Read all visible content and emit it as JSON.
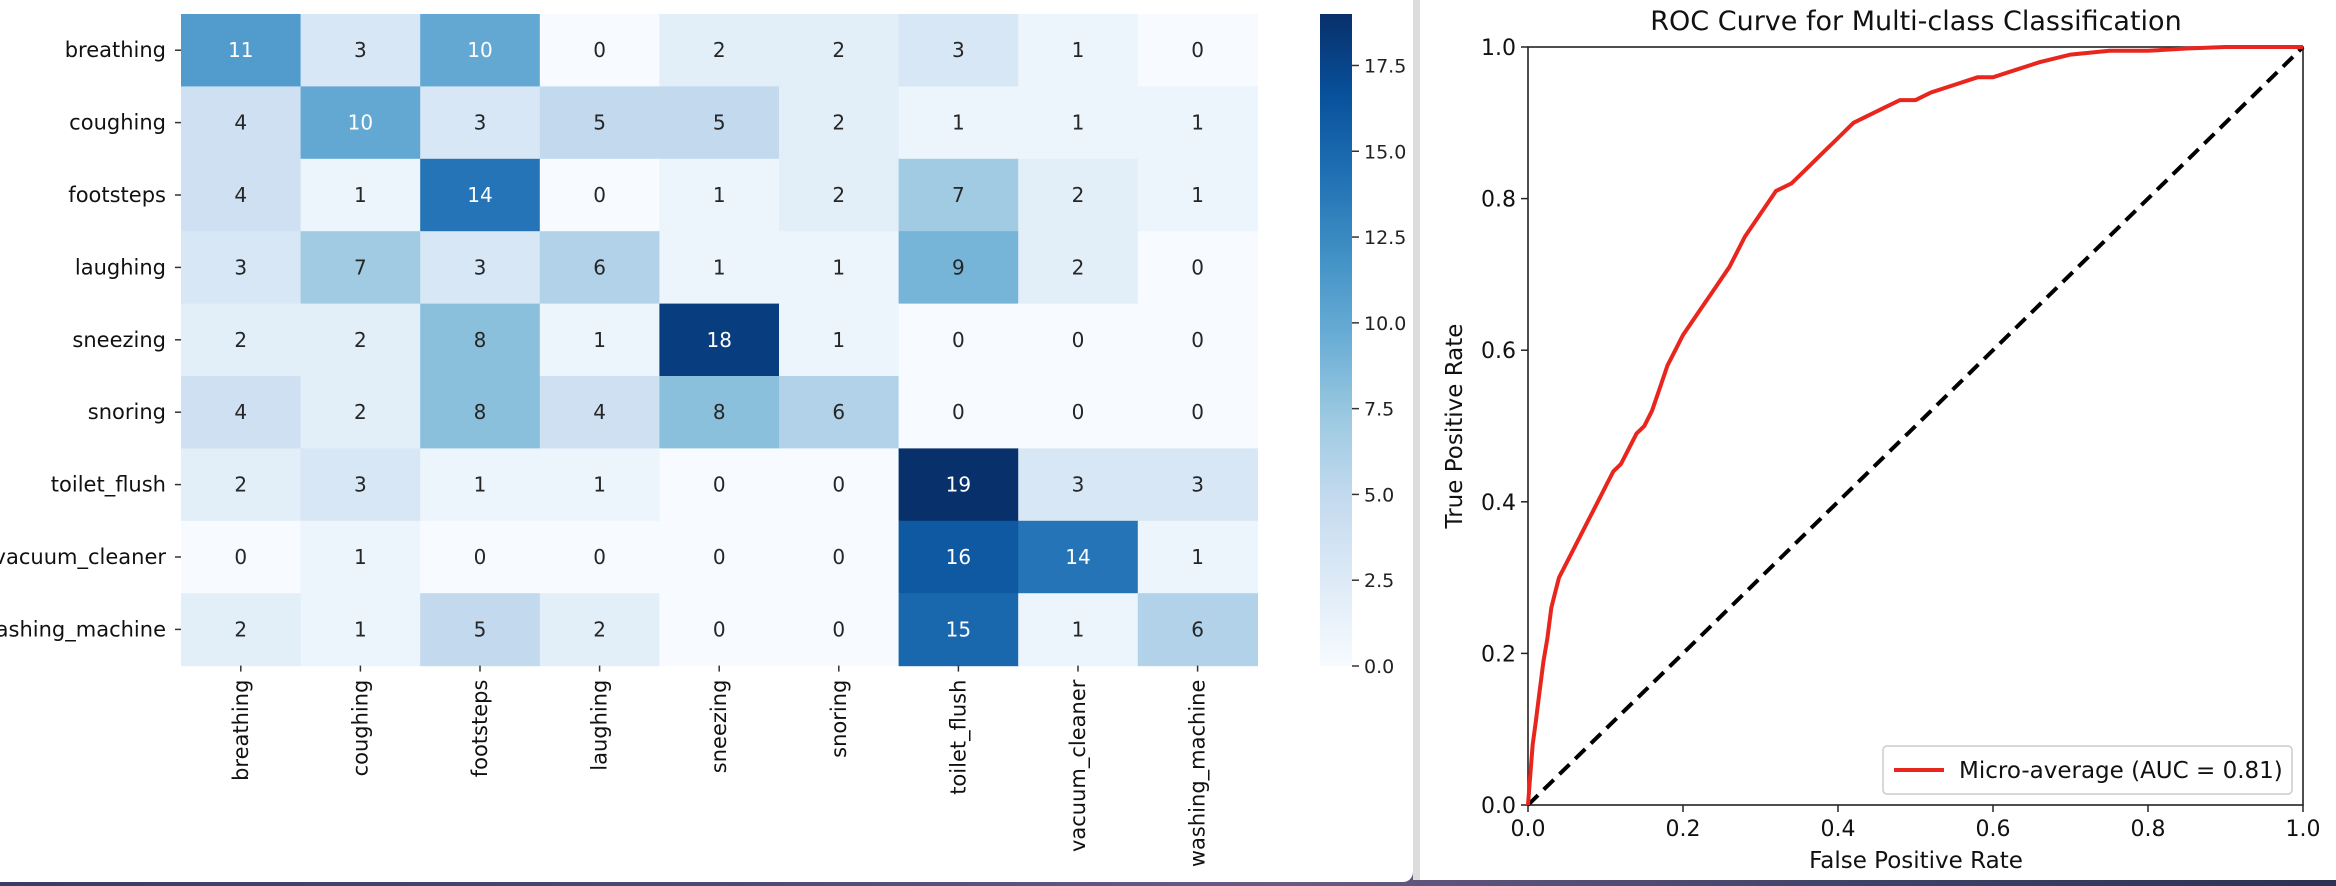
{
  "chart_data": [
    {
      "type": "heatmap",
      "rows": [
        "breathing",
        "coughing",
        "footsteps",
        "laughing",
        "sneezing",
        "snoring",
        "toilet_flush",
        "vacuum_cleaner",
        "washing_machine"
      ],
      "row_labels_visible": [
        "breathing",
        "coughing",
        "footsteps",
        "laughing",
        "sneezing",
        "snoring",
        "toilet_flush",
        "vacuum_cleaner",
        "ashing_machine"
      ],
      "columns": [
        "breathing",
        "coughing",
        "footsteps",
        "laughing",
        "sneezing",
        "snoring",
        "toilet_flush",
        "vacuum_cleaner",
        "washing_machine"
      ],
      "values": [
        [
          11,
          3,
          10,
          0,
          2,
          2,
          3,
          1,
          0
        ],
        [
          4,
          10,
          3,
          5,
          5,
          2,
          1,
          1,
          1
        ],
        [
          4,
          1,
          14,
          0,
          1,
          2,
          7,
          2,
          1
        ],
        [
          3,
          7,
          3,
          6,
          1,
          1,
          9,
          2,
          0
        ],
        [
          2,
          2,
          8,
          1,
          18,
          1,
          0,
          0,
          0
        ],
        [
          4,
          2,
          8,
          4,
          8,
          6,
          0,
          0,
          0
        ],
        [
          2,
          3,
          1,
          1,
          0,
          0,
          19,
          3,
          3
        ],
        [
          0,
          1,
          0,
          0,
          0,
          0,
          16,
          14,
          1
        ],
        [
          2,
          1,
          5,
          2,
          0,
          0,
          15,
          1,
          6
        ]
      ],
      "colormap": "Blues",
      "vmin": 0,
      "vmax": 19,
      "colorbar_ticks": [
        "0.0",
        "2.5",
        "5.0",
        "7.5",
        "10.0",
        "12.5",
        "15.0",
        "17.5"
      ],
      "colorbar_tick_values": [
        0,
        2.5,
        5,
        7.5,
        10,
        12.5,
        15,
        17.5
      ]
    },
    {
      "type": "line",
      "title": "ROC Curve for Multi-class Classification",
      "xlabel": "False Positive Rate",
      "ylabel": "True Positive Rate",
      "xlim": [
        0,
        1
      ],
      "ylim": [
        0,
        1
      ],
      "xticks": [
        "0.0",
        "0.2",
        "0.4",
        "0.6",
        "0.8",
        "1.0"
      ],
      "yticks": [
        "0.0",
        "0.2",
        "0.4",
        "0.6",
        "0.8",
        "1.0"
      ],
      "tick_values": [
        0,
        0.2,
        0.4,
        0.6,
        0.8,
        1.0
      ],
      "series": [
        {
          "name": "Micro-average (AUC = 0.81)",
          "color": "#e8261e",
          "x": [
            0,
            0.003,
            0.006,
            0.01,
            0.015,
            0.02,
            0.025,
            0.03,
            0.035,
            0.04,
            0.05,
            0.06,
            0.07,
            0.08,
            0.09,
            0.1,
            0.11,
            0.12,
            0.13,
            0.14,
            0.15,
            0.16,
            0.17,
            0.18,
            0.19,
            0.2,
            0.22,
            0.24,
            0.26,
            0.28,
            0.3,
            0.32,
            0.34,
            0.36,
            0.38,
            0.4,
            0.42,
            0.44,
            0.46,
            0.48,
            0.5,
            0.52,
            0.55,
            0.58,
            0.6,
            0.63,
            0.66,
            0.7,
            0.75,
            0.8,
            0.85,
            0.9,
            0.95,
            1.0
          ],
          "y": [
            0,
            0.04,
            0.08,
            0.11,
            0.15,
            0.19,
            0.22,
            0.26,
            0.28,
            0.3,
            0.32,
            0.34,
            0.36,
            0.38,
            0.4,
            0.42,
            0.44,
            0.45,
            0.47,
            0.49,
            0.5,
            0.52,
            0.55,
            0.58,
            0.6,
            0.62,
            0.65,
            0.68,
            0.71,
            0.75,
            0.78,
            0.81,
            0.82,
            0.84,
            0.86,
            0.88,
            0.9,
            0.91,
            0.92,
            0.93,
            0.93,
            0.94,
            0.95,
            0.96,
            0.96,
            0.97,
            0.98,
            0.99,
            0.995,
            0.995,
            0.998,
            1.0,
            1.0,
            1.0
          ]
        },
        {
          "name": "",
          "color": "#000000",
          "dashed": true,
          "x": [
            0,
            1
          ],
          "y": [
            0,
            1
          ]
        }
      ],
      "legend_position": "lower-right",
      "legend_entries": [
        "Micro-average (AUC = 0.81)"
      ]
    }
  ]
}
